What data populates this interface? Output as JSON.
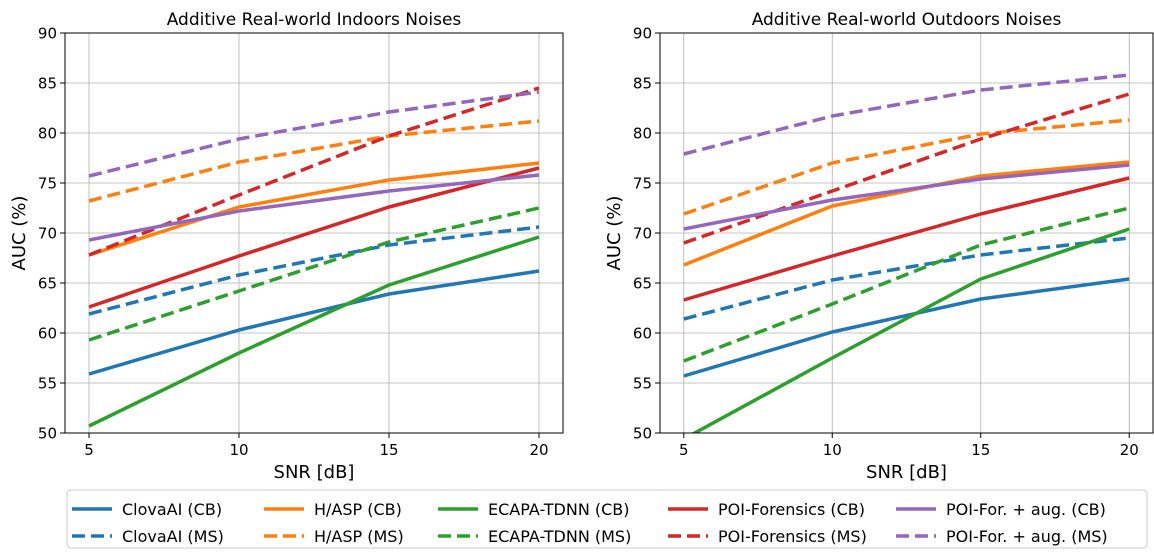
{
  "chart_data": [
    {
      "type": "line",
      "title": "Additive Real-world Indoors Noises",
      "xlabel": "SNR [dB]",
      "ylabel": "AUC (%)",
      "x": [
        5,
        10,
        15,
        20
      ],
      "xticks": [
        "5",
        "10",
        "15",
        "20"
      ],
      "yticks": [
        "50",
        "55",
        "60",
        "65",
        "70",
        "75",
        "80",
        "85",
        "90"
      ],
      "xlim": [
        4.2,
        20.8
      ],
      "ylim": [
        50,
        90
      ],
      "grid": true,
      "series": [
        {
          "name": "ClovaAI (CB)",
          "color": "#1f77b4",
          "dashed": false,
          "values": [
            55.9,
            60.3,
            63.9,
            66.2
          ]
        },
        {
          "name": "ClovaAI (MS)",
          "color": "#1f77b4",
          "dashed": true,
          "values": [
            61.9,
            65.8,
            68.8,
            70.6
          ]
        },
        {
          "name": "H/ASP (CB)",
          "color": "#ff7f0e",
          "dashed": false,
          "values": [
            67.8,
            72.6,
            75.3,
            77.0
          ]
        },
        {
          "name": "H/ASP (MS)",
          "color": "#ff7f0e",
          "dashed": true,
          "values": [
            73.2,
            77.1,
            79.7,
            81.2
          ]
        },
        {
          "name": "ECAPA-TDNN (CB)",
          "color": "#2ca02c",
          "dashed": false,
          "values": [
            50.7,
            58.0,
            64.8,
            69.6
          ]
        },
        {
          "name": "ECAPA-TDNN (MS)",
          "color": "#2ca02c",
          "dashed": true,
          "values": [
            59.3,
            64.2,
            69.1,
            72.5
          ]
        },
        {
          "name": "POI-Forensics (CB)",
          "color": "#d62728",
          "dashed": false,
          "values": [
            62.6,
            67.7,
            72.6,
            76.5
          ]
        },
        {
          "name": "POI-Forensics (MS)",
          "color": "#d62728",
          "dashed": true,
          "values": [
            67.8,
            73.8,
            79.7,
            84.5
          ]
        },
        {
          "name": "POI-For. + aug. (CB)",
          "color": "#9467bd",
          "dashed": false,
          "values": [
            69.3,
            72.2,
            74.2,
            75.8
          ]
        },
        {
          "name": "POI-For. + aug. (MS)",
          "color": "#9467bd",
          "dashed": true,
          "values": [
            75.7,
            79.4,
            82.1,
            84.1
          ]
        }
      ]
    },
    {
      "type": "line",
      "title": "Additive Real-world Outdoors Noises",
      "xlabel": "SNR [dB]",
      "ylabel": "AUC (%)",
      "x": [
        5,
        10,
        15,
        20
      ],
      "xticks": [
        "5",
        "10",
        "15",
        "20"
      ],
      "yticks": [
        "50",
        "55",
        "60",
        "65",
        "70",
        "75",
        "80",
        "85",
        "90"
      ],
      "xlim": [
        4.2,
        20.8
      ],
      "ylim": [
        50,
        90
      ],
      "grid": true,
      "series": [
        {
          "name": "ClovaAI (CB)",
          "color": "#1f77b4",
          "dashed": false,
          "values": [
            55.7,
            60.1,
            63.4,
            65.4
          ]
        },
        {
          "name": "ClovaAI (MS)",
          "color": "#1f77b4",
          "dashed": true,
          "values": [
            61.4,
            65.3,
            67.8,
            69.5
          ]
        },
        {
          "name": "H/ASP (CB)",
          "color": "#ff7f0e",
          "dashed": false,
          "values": [
            66.8,
            72.7,
            75.7,
            77.1
          ]
        },
        {
          "name": "H/ASP (MS)",
          "color": "#ff7f0e",
          "dashed": true,
          "values": [
            71.9,
            77.0,
            79.9,
            81.3
          ]
        },
        {
          "name": "ECAPA-TDNN (CB)",
          "color": "#2ca02c",
          "dashed": false,
          "values": [
            49.4,
            57.5,
            65.4,
            70.4
          ]
        },
        {
          "name": "ECAPA-TDNN (MS)",
          "color": "#2ca02c",
          "dashed": true,
          "values": [
            57.2,
            62.9,
            68.8,
            72.5
          ]
        },
        {
          "name": "POI-Forensics (CB)",
          "color": "#d62728",
          "dashed": false,
          "values": [
            63.3,
            67.7,
            71.9,
            75.5
          ]
        },
        {
          "name": "POI-Forensics (MS)",
          "color": "#d62728",
          "dashed": true,
          "values": [
            69.0,
            74.2,
            79.4,
            83.9
          ]
        },
        {
          "name": "POI-For. + aug. (CB)",
          "color": "#9467bd",
          "dashed": false,
          "values": [
            70.4,
            73.3,
            75.4,
            76.8
          ]
        },
        {
          "name": "POI-For. + aug. (MS)",
          "color": "#9467bd",
          "dashed": true,
          "values": [
            77.9,
            81.7,
            84.3,
            85.8
          ]
        }
      ]
    }
  ],
  "legend": {
    "placement": "bottom",
    "entries": [
      {
        "label": "ClovaAI (CB)",
        "color": "#1f77b4",
        "dashed": false
      },
      {
        "label": "ClovaAI (MS)",
        "color": "#1f77b4",
        "dashed": true
      },
      {
        "label": "H/ASP (CB)",
        "color": "#ff7f0e",
        "dashed": false
      },
      {
        "label": "H/ASP (MS)",
        "color": "#ff7f0e",
        "dashed": true
      },
      {
        "label": "ECAPA-TDNN (CB)",
        "color": "#2ca02c",
        "dashed": false
      },
      {
        "label": "ECAPA-TDNN (MS)",
        "color": "#2ca02c",
        "dashed": true
      },
      {
        "label": "POI-Forensics (CB)",
        "color": "#d62728",
        "dashed": false
      },
      {
        "label": "POI-Forensics (MS)",
        "color": "#d62728",
        "dashed": true
      },
      {
        "label": "POI-For. + aug. (CB)",
        "color": "#9467bd",
        "dashed": false
      },
      {
        "label": "POI-For. + aug. (MS)",
        "color": "#9467bd",
        "dashed": true
      }
    ]
  }
}
